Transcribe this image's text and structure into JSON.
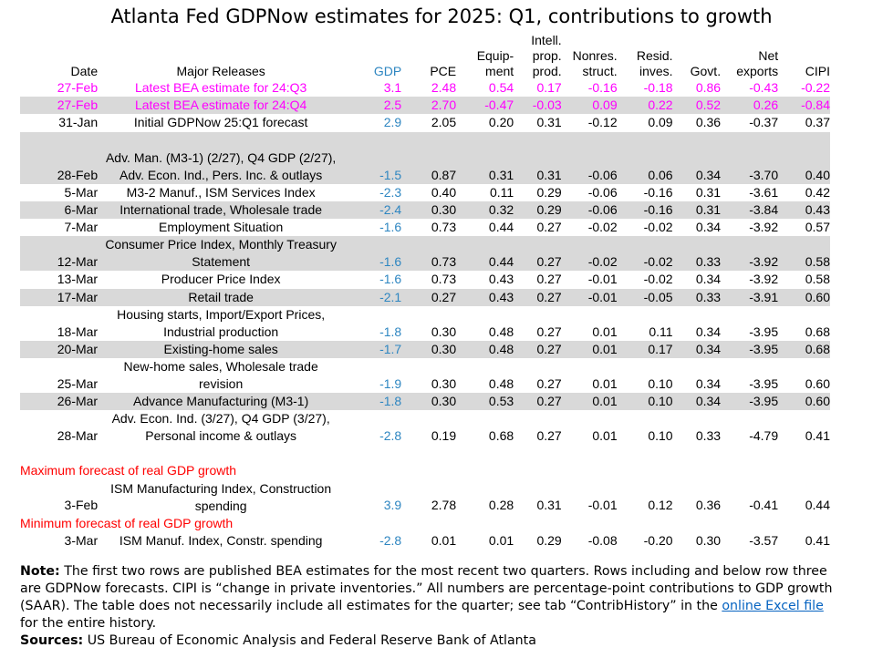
{
  "title": "Atlanta Fed GDPNow estimates for 2025: Q1, contributions to growth",
  "colors": {
    "pink": "#ff00ff",
    "gdp_blue": "#2e86c1",
    "red": "#ff0000",
    "shade": "#d9d9d9",
    "link": "#0563c1"
  },
  "chart_data": {
    "type": "table",
    "title": "Atlanta Fed GDPNow estimates for 2025: Q1, contributions to growth",
    "columns": [
      [
        "Date"
      ],
      [
        "Major Releases"
      ],
      [
        "GDP"
      ],
      [
        "PCE"
      ],
      [
        "Equip-",
        "ment"
      ],
      [
        "Intell.",
        "prop.",
        "prod."
      ],
      [
        "Nonres.",
        "struct."
      ],
      [
        "Resid.",
        "inves."
      ],
      [
        "Govt."
      ],
      [
        "Net",
        "exports"
      ],
      [
        "CIPI"
      ]
    ],
    "rows": [
      {
        "style": "pink",
        "shade": false,
        "date": "27-Feb",
        "release": [
          "Latest BEA estimate for 24:Q3"
        ],
        "values": [
          "3.1",
          "2.48",
          "0.54",
          "0.17",
          "-0.16",
          "-0.18",
          "0.86",
          "-0.43",
          "-0.22"
        ]
      },
      {
        "style": "pink",
        "shade": true,
        "date": "27-Feb",
        "release": [
          "Latest BEA estimate for 24:Q4"
        ],
        "values": [
          "2.5",
          "2.70",
          "-0.47",
          "-0.03",
          "0.09",
          "0.22",
          "0.52",
          "0.26",
          "-0.84"
        ]
      },
      {
        "style": "normal",
        "shade": false,
        "date": "31-Jan",
        "release": [
          "Initial GDPNow 25:Q1 forecast"
        ],
        "values": [
          "2.9",
          "2.05",
          "0.20",
          "0.31",
          "-0.12",
          "0.09",
          "0.36",
          "-0.37",
          "0.37"
        ]
      },
      {
        "style": "gap",
        "shade": true
      },
      {
        "style": "normal",
        "shade": true,
        "date": "28-Feb",
        "release": [
          "Adv. Man. (M3-1) (2/27), Q4 GDP (2/27),",
          "Adv. Econ. Ind., Pers. Inc. & outlays"
        ],
        "values": [
          "-1.5",
          "0.87",
          "0.31",
          "0.31",
          "-0.06",
          "0.06",
          "0.34",
          "-3.70",
          "0.40"
        ]
      },
      {
        "style": "normal",
        "shade": false,
        "date": "5-Mar",
        "release": [
          "M3-2 Manuf., ISM Services Index"
        ],
        "values": [
          "-2.3",
          "0.40",
          "0.11",
          "0.29",
          "-0.06",
          "-0.16",
          "0.31",
          "-3.61",
          "0.42"
        ]
      },
      {
        "style": "normal",
        "shade": true,
        "date": "6-Mar",
        "release": [
          "International trade, Wholesale trade"
        ],
        "values": [
          "-2.4",
          "0.30",
          "0.32",
          "0.29",
          "-0.06",
          "-0.16",
          "0.31",
          "-3.84",
          "0.43"
        ]
      },
      {
        "style": "normal",
        "shade": false,
        "date": "7-Mar",
        "release": [
          "Employment Situation"
        ],
        "values": [
          "-1.6",
          "0.73",
          "0.44",
          "0.27",
          "-0.02",
          "-0.02",
          "0.34",
          "-3.92",
          "0.57"
        ]
      },
      {
        "style": "normal",
        "shade": true,
        "date": "12-Mar",
        "release": [
          "Consumer Price Index, Monthly Treasury",
          "Statement"
        ],
        "values": [
          "-1.6",
          "0.73",
          "0.44",
          "0.27",
          "-0.02",
          "-0.02",
          "0.33",
          "-3.92",
          "0.58"
        ]
      },
      {
        "style": "normal",
        "shade": false,
        "date": "13-Mar",
        "release": [
          "Producer Price Index"
        ],
        "values": [
          "-1.6",
          "0.73",
          "0.43",
          "0.27",
          "-0.01",
          "-0.02",
          "0.34",
          "-3.92",
          "0.58"
        ]
      },
      {
        "style": "normal",
        "shade": true,
        "date": "17-Mar",
        "release": [
          "Retail trade"
        ],
        "values": [
          "-2.1",
          "0.27",
          "0.43",
          "0.27",
          "-0.01",
          "-0.05",
          "0.33",
          "-3.91",
          "0.60"
        ]
      },
      {
        "style": "normal",
        "shade": false,
        "date": "18-Mar",
        "release": [
          "Housing starts, Import/Export Prices,",
          "Industrial production"
        ],
        "values": [
          "-1.8",
          "0.30",
          "0.48",
          "0.27",
          "0.01",
          "0.11",
          "0.34",
          "-3.95",
          "0.68"
        ]
      },
      {
        "style": "normal",
        "shade": true,
        "date": "20-Mar",
        "release": [
          "Existing-home sales"
        ],
        "values": [
          "-1.7",
          "0.30",
          "0.48",
          "0.27",
          "0.01",
          "0.17",
          "0.34",
          "-3.95",
          "0.68"
        ]
      },
      {
        "style": "normal",
        "shade": false,
        "date": "25-Mar",
        "release": [
          "New-home sales, Wholesale trade",
          "revision"
        ],
        "values": [
          "-1.9",
          "0.30",
          "0.48",
          "0.27",
          "0.01",
          "0.10",
          "0.34",
          "-3.95",
          "0.60"
        ]
      },
      {
        "style": "normal",
        "shade": true,
        "date": "26-Mar",
        "release": [
          "Advance Manufacturing (M3-1)"
        ],
        "values": [
          "-1.8",
          "0.30",
          "0.53",
          "0.27",
          "0.01",
          "0.10",
          "0.34",
          "-3.95",
          "0.60"
        ]
      },
      {
        "style": "normal",
        "shade": false,
        "date": "28-Mar",
        "release": [
          "Adv. Econ. Ind. (3/27), Q4 GDP (3/27),",
          "Personal income & outlays"
        ],
        "values": [
          "-2.8",
          "0.19",
          "0.68",
          "0.27",
          "0.01",
          "0.10",
          "0.33",
          "-4.79",
          "0.41"
        ]
      },
      {
        "style": "gapw",
        "shade": false
      },
      {
        "style": "red",
        "label": "Maximum forecast of real GDP growth"
      },
      {
        "style": "normal",
        "shade": false,
        "date": "3-Feb",
        "release": [
          "ISM Manufacturing Index, Construction",
          "spending"
        ],
        "values": [
          "3.9",
          "2.78",
          "0.28",
          "0.31",
          "-0.01",
          "0.12",
          "0.36",
          "-0.41",
          "0.44"
        ]
      },
      {
        "style": "red",
        "label": "Minimum forecast of real GDP growth"
      },
      {
        "style": "normal",
        "shade": false,
        "date": "3-Mar",
        "release": [
          "ISM Manuf. Index, Constr. spending"
        ],
        "values": [
          "-2.8",
          "0.01",
          "0.01",
          "0.29",
          "-0.08",
          "-0.20",
          "0.30",
          "-3.57",
          "0.41"
        ]
      }
    ]
  },
  "note": {
    "label": "Note:",
    "text": " The first two rows are published BEA estimates for the most recent two quarters. Rows including and below row three are GDPNow forecasts. CIPI is “change in private inventories.” All numbers are percentage-point contributions to GDP growth (SAAR). The table does not necessarily include all estimates for the quarter; see tab “ContribHistory” in the ",
    "link": "online Excel file",
    "tail": " for the entire history.",
    "sources_label": "Sources:",
    "sources": " US Bureau of Economic Analysis and Federal Reserve Bank of Atlanta"
  }
}
